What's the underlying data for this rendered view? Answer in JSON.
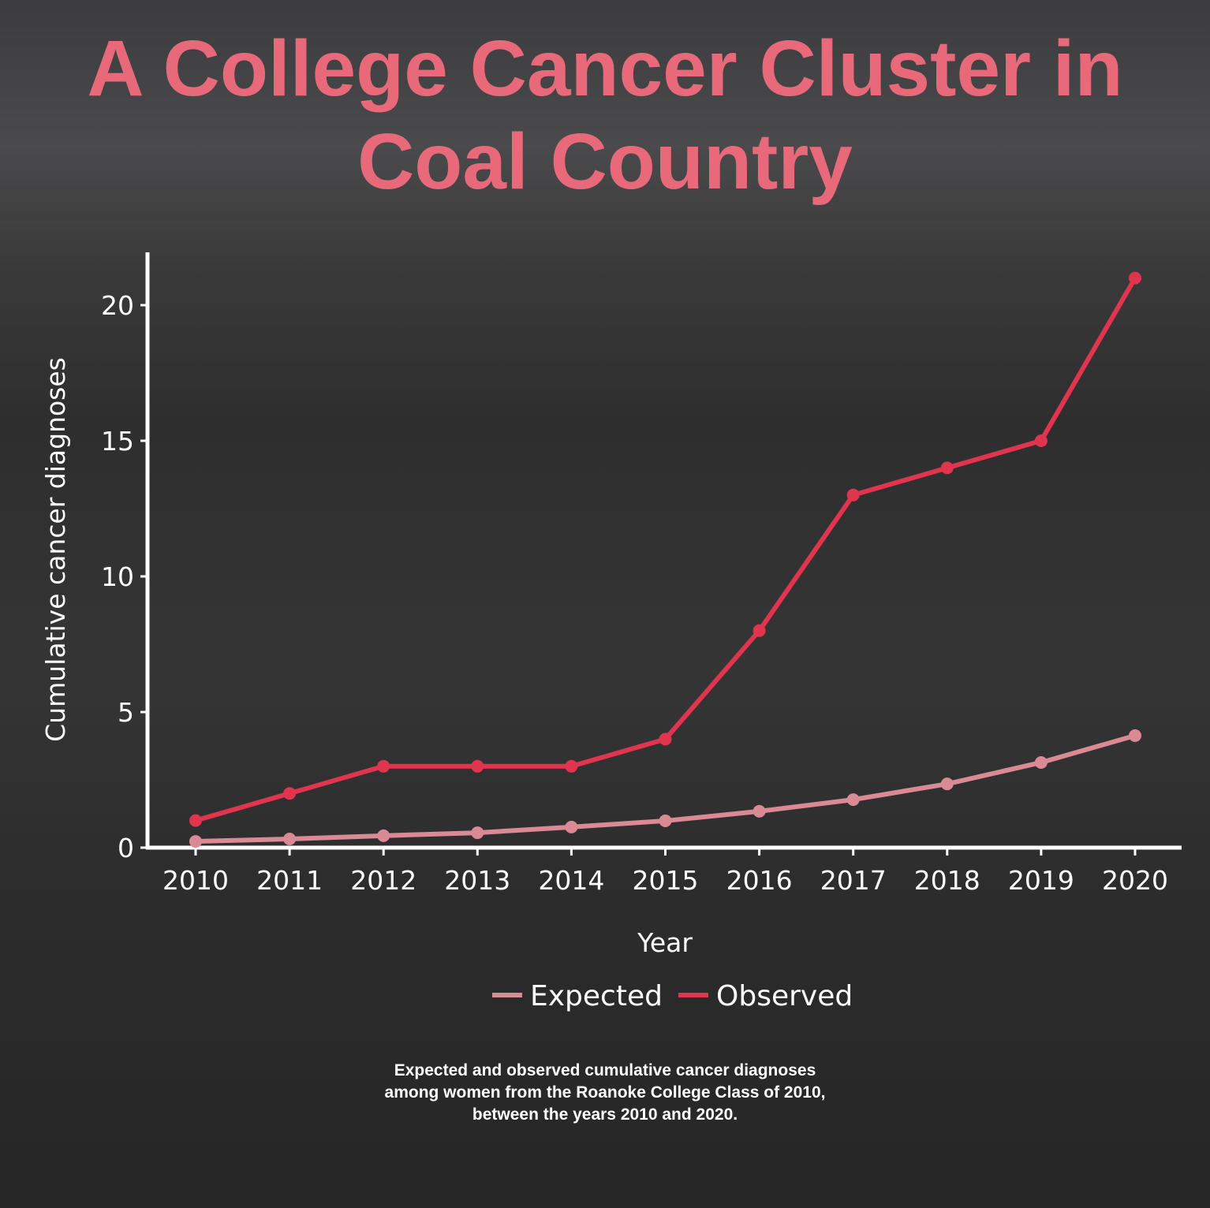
{
  "title": "A College Cancer Cluster in Coal Country",
  "caption": [
    "Expected and observed cumulative cancer diagnoses",
    "among women from the Roanoke College Class of 2010,",
    "between the years 2010 and 2020."
  ],
  "colors": {
    "title": "#e8697a",
    "observed": "#e0344f",
    "expected": "#d98a94"
  },
  "chart_data": {
    "type": "line",
    "title": "A College Cancer Cluster in Coal Country",
    "xlabel": "Year",
    "ylabel": "Cumulative cancer diagnoses",
    "x": [
      "2010",
      "2011",
      "2012",
      "2013",
      "2014",
      "2015",
      "2016",
      "2017",
      "2018",
      "2019",
      "2020"
    ],
    "yticks": [
      0,
      5,
      10,
      15,
      20
    ],
    "ylim": [
      0,
      22
    ],
    "legend_position": "bottom",
    "series": [
      {
        "name": "Expected",
        "values": [
          0.23,
          0.32,
          0.44,
          0.55,
          0.76,
          0.99,
          1.34,
          1.77,
          2.35,
          3.14,
          4.13
        ]
      },
      {
        "name": "Observed",
        "values": [
          1,
          2,
          3,
          3,
          3,
          4,
          8,
          13,
          14,
          15,
          21
        ]
      }
    ]
  }
}
